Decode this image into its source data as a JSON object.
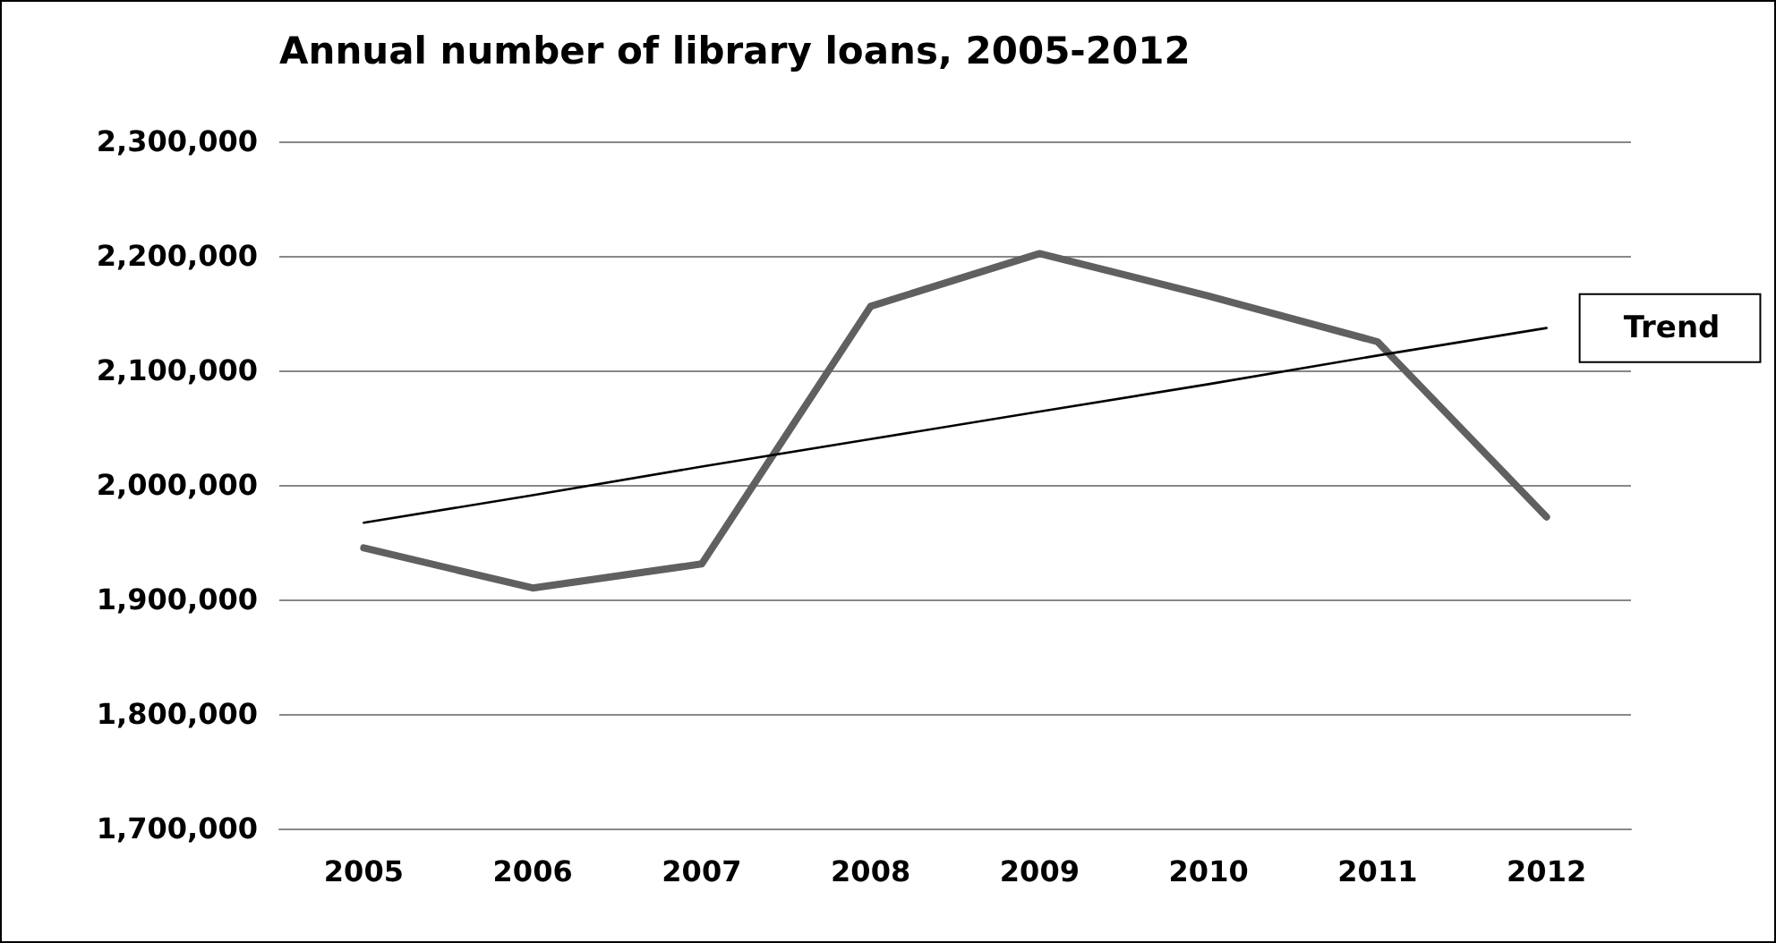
{
  "chart_data": {
    "type": "line",
    "title": "Annual number of library loans, 2005-2012",
    "categories": [
      "2005",
      "2006",
      "2007",
      "2008",
      "2009",
      "2010",
      "2011",
      "2012"
    ],
    "series": [
      {
        "color": "#606060",
        "values": [
          1945000,
          1910000,
          1931000,
          2156000,
          2202000,
          2165000,
          2125000,
          1972000
        ]
      },
      {
        "name": "Trend",
        "type": "line",
        "color": "#000000",
        "values": [
          1967000,
          1991000,
          2016000,
          2040000,
          2064000,
          2088000,
          2113000,
          2137000
        ]
      }
    ],
    "ylim": [
      1700000,
      2300000
    ],
    "yticks": [
      {
        "value": 1700000,
        "label": "1,700,000"
      },
      {
        "value": 1800000,
        "label": "1,800,000"
      },
      {
        "value": 1900000,
        "label": "1,900,000"
      },
      {
        "value": 2000000,
        "label": "2,000,000"
      },
      {
        "value": 2100000,
        "label": "2,100,000"
      },
      {
        "value": 2200000,
        "label": "2,200,000"
      },
      {
        "value": 2300000,
        "label": "2,300,000"
      }
    ],
    "grid": "y",
    "legend": false,
    "marker": "none",
    "line_style": "solid"
  }
}
